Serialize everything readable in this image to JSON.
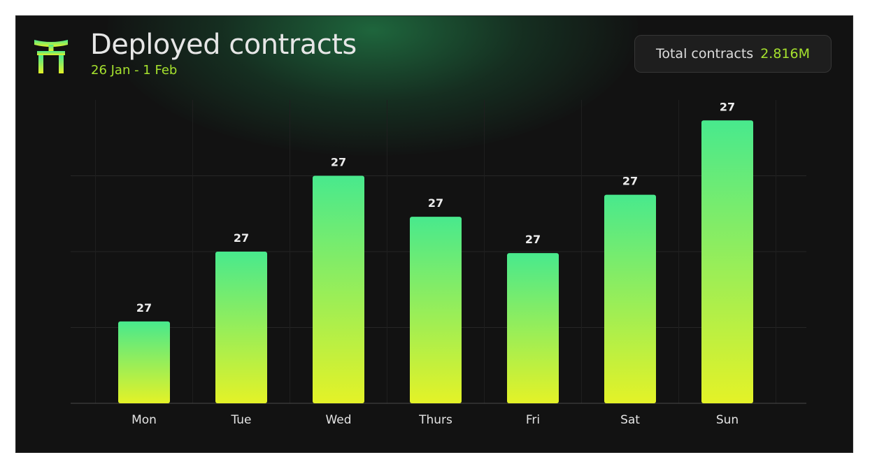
{
  "header": {
    "logo_icon": "torii-gate-icon",
    "title": "Deployed contracts",
    "subtitle": "26 Jan - 1 Feb",
    "total_label": "Total contracts",
    "total_value": "2.816M"
  },
  "colors": {
    "background": "#121212",
    "accent": "#a6e22e",
    "bar_top": "#48e98d",
    "bar_bottom": "#e4f227"
  },
  "chart_data": {
    "type": "bar",
    "categories": [
      "Mon",
      "Tue",
      "Wed",
      "Thurs",
      "Fri",
      "Sat",
      "Sun"
    ],
    "values": [
      108,
      200,
      300,
      246,
      198,
      275,
      373
    ],
    "data_labels": [
      "27",
      "27",
      "27",
      "27",
      "27",
      "27",
      "27"
    ],
    "title": "Deployed contracts",
    "subtitle": "26 Jan - 1 Feb",
    "xlabel": "",
    "ylabel": "",
    "ylim": [
      0,
      400
    ],
    "grid": true,
    "legend": "none"
  }
}
